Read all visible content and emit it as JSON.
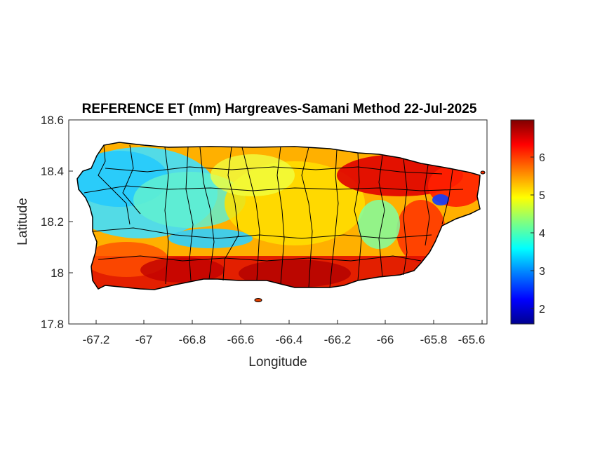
{
  "figure": {
    "title": "REFERENCE ET (mm) Hargreaves-Samani Method  22-Jul-2025",
    "xlabel": "Longitude",
    "ylabel": "Latitude"
  },
  "map": {
    "x_ticks": [
      "-67.2",
      "-67",
      "-66.8",
      "-66.6",
      "-66.4",
      "-66.2",
      "-66",
      "-65.8",
      "-65.6"
    ],
    "y_ticks": [
      "18.6",
      "18.4",
      "18.2",
      "18"
    ],
    "y_tick_bottom": "17.8",
    "x_range": [
      -67.3,
      -65.58
    ],
    "y_range": [
      17.8,
      18.6
    ]
  },
  "colorbar": {
    "colormap": "jet",
    "range": [
      1.6,
      6.95
    ],
    "ticks": [
      "6",
      "5",
      "4",
      "3",
      "2"
    ],
    "colors": [
      "#00008f",
      "#0000ff",
      "#0080ff",
      "#00ffff",
      "#80ff80",
      "#ffff00",
      "#ff8000",
      "#ff0000",
      "#800000"
    ]
  }
}
